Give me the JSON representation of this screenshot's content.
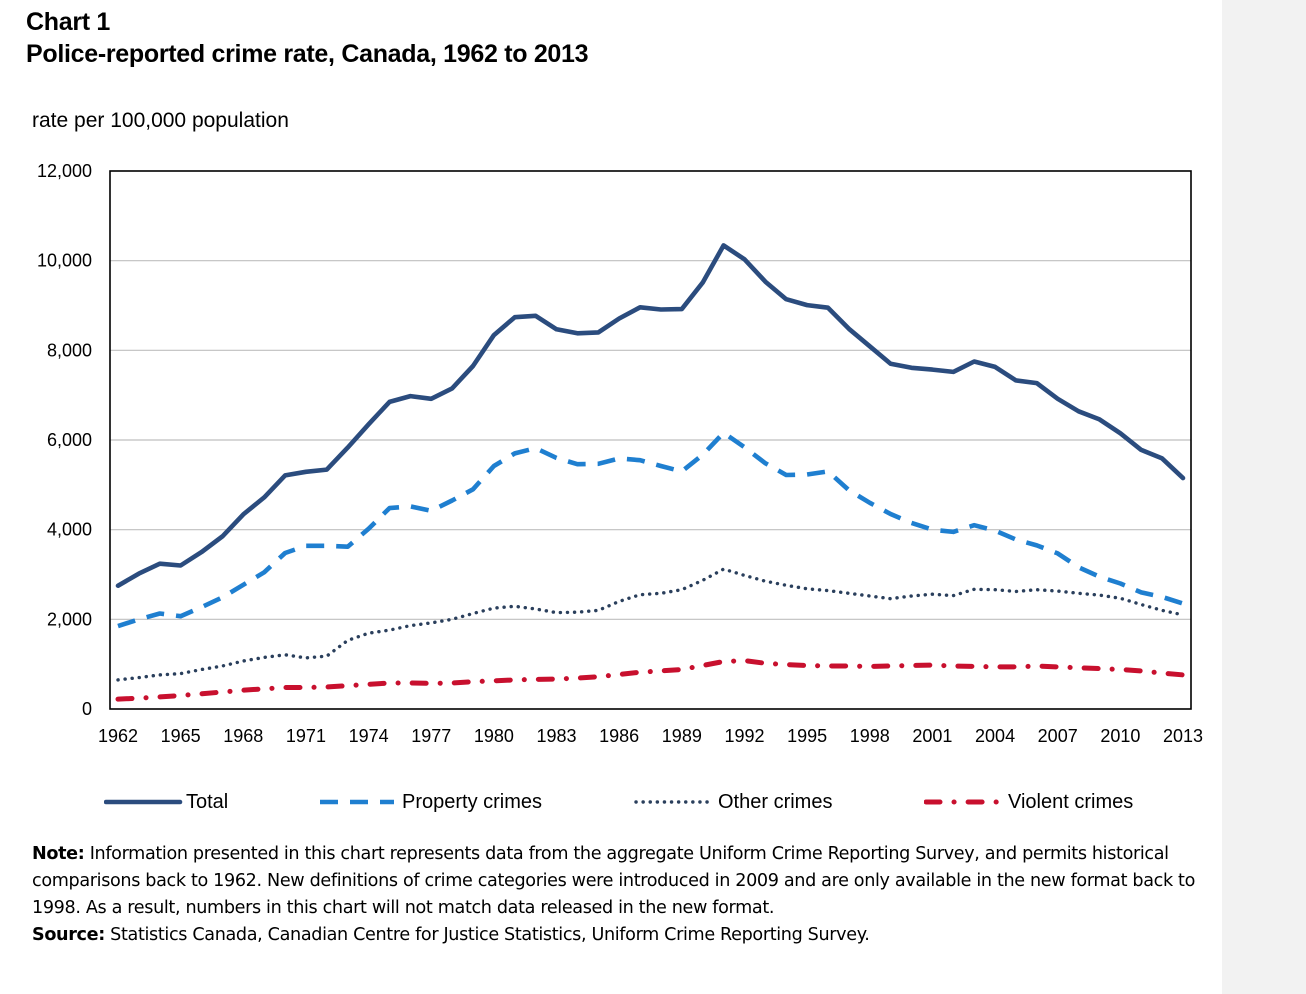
{
  "header": {
    "chart_label": "Chart 1",
    "title": "Police-reported crime rate, Canada, 1962 to 2013",
    "y_unit": "rate per 100,000 population"
  },
  "chart_data": {
    "type": "line",
    "title": "Police-reported crime rate, Canada, 1962 to 2013",
    "ylabel": "rate per 100,000 population",
    "xlabel": "",
    "x": [
      1962,
      1963,
      1964,
      1965,
      1966,
      1967,
      1968,
      1969,
      1970,
      1971,
      1972,
      1973,
      1974,
      1975,
      1976,
      1977,
      1978,
      1979,
      1980,
      1981,
      1982,
      1983,
      1984,
      1985,
      1986,
      1987,
      1988,
      1989,
      1990,
      1991,
      1992,
      1993,
      1994,
      1995,
      1996,
      1997,
      1998,
      1999,
      2000,
      2001,
      2002,
      2003,
      2004,
      2005,
      2006,
      2007,
      2008,
      2009,
      2010,
      2011,
      2012,
      2013
    ],
    "x_tick_labels": [
      "1962",
      "1965",
      "1968",
      "1971",
      "1974",
      "1977",
      "1980",
      "1983",
      "1986",
      "1989",
      "1992",
      "1995",
      "1998",
      "2001",
      "2004",
      "2007",
      "2010",
      "2013"
    ],
    "ylim": [
      0,
      12000
    ],
    "y_ticks": [
      0,
      2000,
      4000,
      6000,
      8000,
      10000,
      12000
    ],
    "y_tick_labels": [
      "0",
      "2,000",
      "4,000",
      "6,000",
      "8,000",
      "10,000",
      "12,000"
    ],
    "grid": "horizontal",
    "legend_position": "bottom",
    "series": [
      {
        "name": "Total",
        "style": "solid",
        "color": "#2b4c7e",
        "values": [
          2750,
          3020,
          3240,
          3200,
          3500,
          3850,
          4340,
          4720,
          5210,
          5290,
          5340,
          5830,
          6350,
          6850,
          6980,
          6920,
          7150,
          7650,
          8340,
          8740,
          8770,
          8470,
          8380,
          8400,
          8710,
          8960,
          8910,
          8920,
          9510,
          10340,
          10030,
          9530,
          9140,
          9010,
          8950,
          8480,
          8090,
          7700,
          7610,
          7570,
          7520,
          7750,
          7630,
          7330,
          7270,
          6920,
          6640,
          6460,
          6150,
          5780,
          5590,
          5150
        ]
      },
      {
        "name": "Property crimes",
        "style": "dashed",
        "color": "#1f7fd0",
        "values": [
          1850,
          2000,
          2130,
          2070,
          2270,
          2490,
          2770,
          3050,
          3480,
          3640,
          3640,
          3620,
          4020,
          4480,
          4520,
          4420,
          4650,
          4900,
          5420,
          5700,
          5820,
          5600,
          5460,
          5470,
          5590,
          5550,
          5420,
          5300,
          5670,
          6160,
          5840,
          5480,
          5220,
          5230,
          5300,
          4880,
          4600,
          4350,
          4150,
          4000,
          3950,
          4100,
          3980,
          3780,
          3650,
          3470,
          3160,
          2950,
          2800,
          2600,
          2500,
          2350
        ]
      },
      {
        "name": "Other crimes",
        "style": "dotted",
        "color": "#2a3f5c",
        "values": [
          650,
          700,
          760,
          790,
          880,
          960,
          1070,
          1150,
          1210,
          1140,
          1180,
          1530,
          1690,
          1760,
          1860,
          1920,
          2000,
          2130,
          2250,
          2290,
          2230,
          2150,
          2160,
          2200,
          2400,
          2550,
          2580,
          2660,
          2870,
          3120,
          2980,
          2850,
          2760,
          2680,
          2640,
          2580,
          2520,
          2460,
          2520,
          2560,
          2530,
          2670,
          2660,
          2620,
          2660,
          2630,
          2580,
          2540,
          2470,
          2330,
          2200,
          2100
        ]
      },
      {
        "name": "Violent crimes",
        "style": "dash-dot",
        "color": "#c8102e",
        "values": [
          220,
          240,
          270,
          300,
          340,
          380,
          420,
          450,
          480,
          480,
          490,
          520,
          550,
          580,
          580,
          570,
          580,
          610,
          630,
          650,
          660,
          670,
          690,
          720,
          770,
          820,
          850,
          880,
          970,
          1060,
          1080,
          1020,
          990,
          970,
          960,
          960,
          950,
          960,
          970,
          980,
          960,
          950,
          940,
          940,
          960,
          940,
          920,
          900,
          880,
          850,
          800,
          760
        ]
      }
    ]
  },
  "notes": {
    "note_label": "Note:",
    "note_text": " Information presented in this chart represents data from the aggregate Uniform Crime Reporting Survey, and permits historical comparisons back to 1962. New definitions of crime categories were introduced in 2009 and are only available in the new format back to 1998. As a result, numbers in this chart will not match data released in the new format.",
    "source_label": "Source:",
    "source_text": " Statistics Canada, Canadian Centre for Justice Statistics, Uniform Crime Reporting Survey."
  }
}
